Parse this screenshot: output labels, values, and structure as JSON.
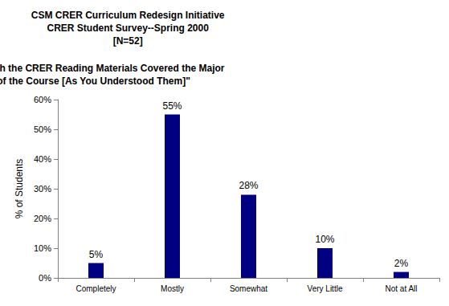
{
  "chart_data": {
    "type": "bar",
    "title": "CSM CRER Curriculum Redesign Initiative\nCRER Student Survey--Spring 2000\n[N=52]",
    "subtitle": "\"Extent to which the CRER Reading Materials Covered the Major\nTopics of the Course [As You Understood Them]\"",
    "y_label": "% of Students",
    "categories": [
      "Completely",
      "Mostly",
      "Somewhat",
      "Very Little",
      "Not at All"
    ],
    "values": [
      5,
      55,
      28,
      10,
      2
    ],
    "value_labels": [
      "5%",
      "55%",
      "28%",
      "10%",
      "2%"
    ],
    "data_labels": true,
    "color": "#000080",
    "ylim": [
      0,
      60
    ],
    "yticks": [
      {
        "value": 0,
        "label": "0%"
      },
      {
        "value": 10,
        "label": "10%"
      },
      {
        "value": 20,
        "label": "20%"
      },
      {
        "value": 30,
        "label": "30%"
      },
      {
        "value": 40,
        "label": "40%"
      },
      {
        "value": 50,
        "label": "50%"
      },
      {
        "value": 60,
        "label": "60%"
      }
    ],
    "grid": false
  }
}
